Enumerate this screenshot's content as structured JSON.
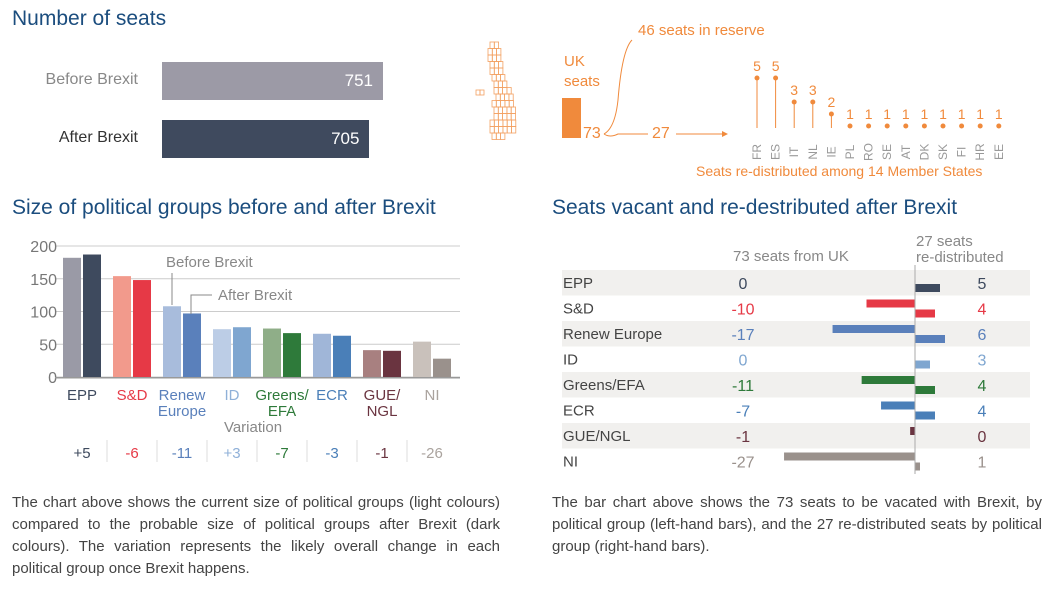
{
  "top": {
    "title": "Number of seats",
    "bars": [
      {
        "label": "Before Brexit",
        "value": 751,
        "color": "#9c9aa6"
      },
      {
        "label": "After Brexit",
        "value": 705,
        "color": "#3f4a5e"
      }
    ],
    "uk_label": "UK seats",
    "uk_value": "73",
    "reserve": "46 seats in reserve",
    "redistributed_value": "27",
    "redistribution_caption": "Seats re-distributed among 14 Member States",
    "countries": [
      {
        "code": "FR",
        "seats": 5
      },
      {
        "code": "ES",
        "seats": 5
      },
      {
        "code": "IT",
        "seats": 3
      },
      {
        "code": "NL",
        "seats": 3
      },
      {
        "code": "IE",
        "seats": 2
      },
      {
        "code": "PL",
        "seats": 1
      },
      {
        "code": "RO",
        "seats": 1
      },
      {
        "code": "SE",
        "seats": 1
      },
      {
        "code": "AT",
        "seats": 1
      },
      {
        "code": "DK",
        "seats": 1
      },
      {
        "code": "SK",
        "seats": 1
      },
      {
        "code": "FI",
        "seats": 1
      },
      {
        "code": "HR",
        "seats": 1
      },
      {
        "code": "EE",
        "seats": 1
      }
    ],
    "accent": "#f08a3c"
  },
  "chart_data": [
    {
      "type": "bar",
      "title": "Size of political groups before and after Brexit",
      "categories": [
        "EPP",
        "S&D",
        "Renew Europe",
        "ID",
        "Greens/ EFA",
        "ECR",
        "GUE/ NGL",
        "NI"
      ],
      "series": [
        {
          "name": "Before Brexit",
          "values": [
            182,
            154,
            108,
            73,
            74,
            66,
            41,
            54
          ]
        },
        {
          "name": "After Brexit",
          "values": [
            187,
            148,
            97,
            76,
            67,
            63,
            40,
            28
          ]
        }
      ],
      "variation_label": "Variation",
      "variation": [
        "+5",
        "-6",
        "-11",
        "+3",
        "-7",
        "-3",
        "-1",
        "-26"
      ],
      "light_colors": [
        "#9a9aa6",
        "#f29a8c",
        "#a8bcdc",
        "#bccde6",
        "#8fae88",
        "#a0b6d8",
        "#a88080",
        "#c9c1bb"
      ],
      "dark_colors": [
        "#3e4a5e",
        "#e63946",
        "#5a80bb",
        "#7fa6d0",
        "#2e7a3a",
        "#4a7fb8",
        "#6a3440",
        "#9a918c"
      ],
      "label_colors": [
        "#3e4a5e",
        "#e63946",
        "#5a80bb",
        "#8fb0d8",
        "#2e7a3a",
        "#4a7fb8",
        "#6a3440",
        "#aaa39e"
      ],
      "yticks": [
        0,
        50,
        100,
        150,
        200
      ],
      "ylim": [
        0,
        200
      ],
      "grid": true
    },
    {
      "type": "bar",
      "title": "Seats vacant and re-destributed after Brexit",
      "left_header": "73 seats from UK",
      "right_header_1": "27 seats",
      "right_header_2": "re-distributed",
      "categories": [
        "EPP",
        "S&D",
        "Renew Europe",
        "ID",
        "Greens/EFA",
        "ECR",
        "GUE/NGL",
        "NI"
      ],
      "vacated": [
        0,
        -10,
        -17,
        0,
        -11,
        -7,
        -1,
        -27
      ],
      "redistributed": [
        5,
        4,
        6,
        3,
        4,
        4,
        0,
        1
      ],
      "colors": [
        "#3e4a5e",
        "#e63946",
        "#5a80bb",
        "#7fa6d0",
        "#2e7a3a",
        "#4a7fb8",
        "#6a3440",
        "#9a918c"
      ]
    }
  ],
  "captions": {
    "left": "The chart above shows the current size of political groups (light colours) compared to the probable size of political groups after Brexit (dark colours). The variation represents the likely overall change in each political group once Brexit happens.",
    "right": "The bar chart above shows the 73 seats to be vacated with Brexit, by political group (left-hand bars), and the 27 re-distributed seats by political group (right-hand bars)."
  }
}
